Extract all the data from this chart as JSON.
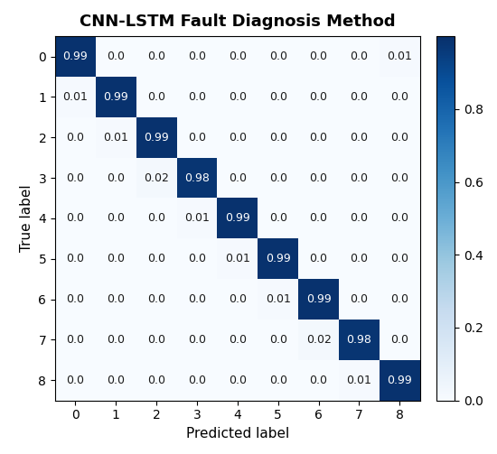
{
  "title": "CNN-LSTM Fault Diagnosis Method",
  "xlabel": "Predicted label",
  "ylabel": "True label",
  "matrix": [
    [
      0.99,
      0.0,
      0.0,
      0.0,
      0.0,
      0.0,
      0.0,
      0.0,
      0.01
    ],
    [
      0.01,
      0.99,
      0.0,
      0.0,
      0.0,
      0.0,
      0.0,
      0.0,
      0.0
    ],
    [
      0.0,
      0.01,
      0.99,
      0.0,
      0.0,
      0.0,
      0.0,
      0.0,
      0.0
    ],
    [
      0.0,
      0.0,
      0.02,
      0.98,
      0.0,
      0.0,
      0.0,
      0.0,
      0.0
    ],
    [
      0.0,
      0.0,
      0.0,
      0.01,
      0.99,
      0.0,
      0.0,
      0.0,
      0.0
    ],
    [
      0.0,
      0.0,
      0.0,
      0.0,
      0.01,
      0.99,
      0.0,
      0.0,
      0.0
    ],
    [
      0.0,
      0.0,
      0.0,
      0.0,
      0.0,
      0.01,
      0.99,
      0.0,
      0.0
    ],
    [
      0.0,
      0.0,
      0.0,
      0.0,
      0.0,
      0.0,
      0.02,
      0.98,
      0.0
    ],
    [
      0.0,
      0.0,
      0.0,
      0.0,
      0.0,
      0.0,
      0.0,
      0.01,
      0.99
    ]
  ],
  "cmap": "Blues",
  "vmin": 0.0,
  "vmax": 1.0,
  "colorbar_ticks": [
    0.0,
    0.2,
    0.4,
    0.6,
    0.8
  ],
  "n_classes": 9,
  "title_fontsize": 13,
  "label_fontsize": 11,
  "tick_fontsize": 10,
  "text_fontsize": 9,
  "threshold": 0.5,
  "high_color": "#ffffff",
  "low_color": "#1a1a1a",
  "figwidth": 5.5,
  "figheight": 5.03,
  "dpi": 100
}
